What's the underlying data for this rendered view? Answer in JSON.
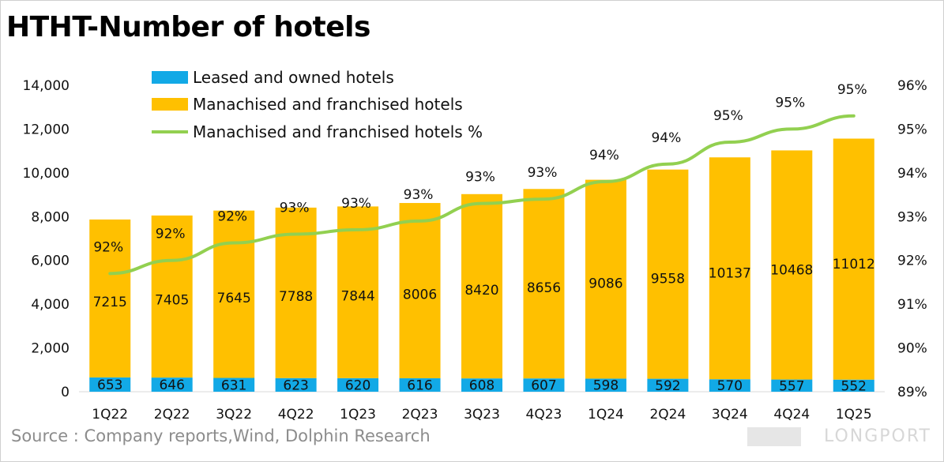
{
  "title": "HTHT-Number of hotels",
  "source": "Source : Company reports,Wind, Dolphin Research",
  "watermark": "LONGPORT",
  "chart_data": {
    "type": "bar",
    "stacked": true,
    "categories": [
      "1Q22",
      "2Q22",
      "3Q22",
      "4Q22",
      "1Q23",
      "2Q23",
      "3Q23",
      "4Q23",
      "1Q24",
      "2Q24",
      "3Q24",
      "4Q24",
      "1Q25"
    ],
    "series": [
      {
        "name": "Leased and owned hotels",
        "type": "bar",
        "axis": "left",
        "color": "#12a9e6",
        "values": [
          653,
          646,
          631,
          623,
          620,
          616,
          608,
          607,
          598,
          592,
          570,
          557,
          552
        ]
      },
      {
        "name": "Manachised and franchised hotels",
        "type": "bar",
        "axis": "left",
        "color": "#ffc000",
        "values": [
          7215,
          7405,
          7645,
          7788,
          7844,
          8006,
          8420,
          8656,
          9086,
          9558,
          10137,
          10468,
          11012
        ]
      },
      {
        "name": "Manachised and franchised hotels %",
        "type": "line",
        "axis": "right",
        "color": "#92d050",
        "values": [
          91.7,
          92.0,
          92.4,
          92.6,
          92.7,
          92.9,
          93.3,
          93.4,
          93.8,
          94.2,
          94.7,
          95.0,
          95.3
        ],
        "labels": [
          "92%",
          "92%",
          "92%",
          "93%",
          "93%",
          "93%",
          "93%",
          "93%",
          "94%",
          "94%",
          "95%",
          "95%",
          "95%"
        ]
      }
    ],
    "y_left": {
      "ylim": [
        0,
        14000
      ],
      "ticks": [
        "0",
        "2,000",
        "4,000",
        "6,000",
        "8,000",
        "10,000",
        "12,000",
        "14,000"
      ]
    },
    "y_right": {
      "ylim": [
        89,
        96
      ],
      "ticks": [
        "89%",
        "90%",
        "91%",
        "92%",
        "93%",
        "94%",
        "95%",
        "96%"
      ]
    },
    "grid": false,
    "legend": "top-left"
  }
}
